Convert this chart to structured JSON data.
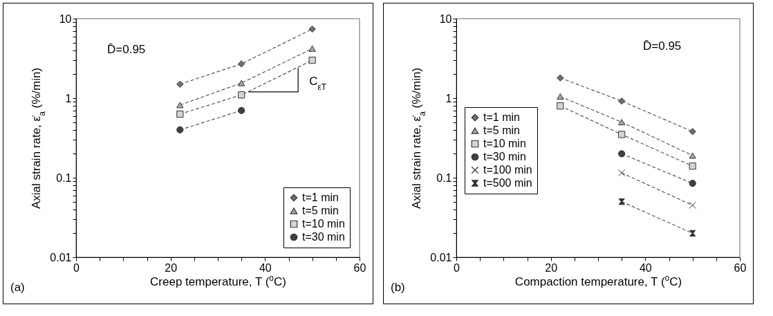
{
  "chart_data": [
    {
      "type": "line",
      "xlabel": "Creep temperature, T ($^{o}$C)",
      "ylabel": "Axial strain rate, ε̇$_{a}$ (%/min)",
      "x": [
        22,
        35,
        50
      ],
      "series": [
        {
          "name": "t=1 min",
          "color": "#707070",
          "marker": "diamond",
          "values": [
            1.5,
            2.7,
            7.4
          ]
        },
        {
          "name": "t=5 min",
          "color": "#a8a8a8",
          "marker": "triangle",
          "values": [
            0.82,
            1.55,
            4.2
          ]
        },
        {
          "name": "t=10 min",
          "color": "#d4d4d4",
          "marker": "square",
          "values": [
            0.63,
            1.1,
            3.0
          ]
        },
        {
          "name": "t=30 min",
          "color": "#404040",
          "marker": "circle",
          "values": [
            0.4,
            0.7,
            null
          ]
        }
      ],
      "log": "y",
      "xlim": [
        0,
        60
      ],
      "ylim": [
        0.01,
        10
      ],
      "xticks": [
        0,
        {
          "value": 5,
          "label": null
        },
        {
          "value": 10,
          "label": null
        },
        {
          "value": 15,
          "label": null
        },
        20,
        {
          "value": 25,
          "label": null
        },
        {
          "value": 30,
          "label": null
        },
        {
          "value": 35,
          "label": null
        },
        40,
        {
          "value": 45,
          "label": null
        },
        {
          "value": 50,
          "label": null
        },
        {
          "value": 55,
          "label": null
        },
        60
      ],
      "yticks": [
        0.01,
        {
          "value": 0.02,
          "label": null
        },
        {
          "value": 0.03,
          "label": null
        },
        {
          "value": 0.04,
          "label": null
        },
        {
          "value": 0.05,
          "label": null
        },
        {
          "value": 0.06,
          "label": null
        },
        {
          "value": 0.07,
          "label": null
        },
        {
          "value": 0.08,
          "label": null
        },
        {
          "value": 0.09,
          "label": null
        },
        0.1,
        {
          "value": 0.2,
          "label": null
        },
        {
          "value": 0.3,
          "label": null
        },
        {
          "value": 0.4,
          "label": null
        },
        {
          "value": 0.5,
          "label": null
        },
        {
          "value": 0.6,
          "label": null
        },
        {
          "value": 0.7,
          "label": null
        },
        {
          "value": 0.8,
          "label": null
        },
        {
          "value": 0.9,
          "label": null
        },
        1,
        {
          "value": 2,
          "label": null
        },
        {
          "value": 3,
          "label": null
        },
        {
          "value": 4,
          "label": null
        },
        {
          "value": 5,
          "label": null
        },
        {
          "value": 6,
          "label": null
        },
        {
          "value": 7,
          "label": null
        },
        {
          "value": 8,
          "label": null
        },
        {
          "value": 9,
          "label": null
        },
        10
      ],
      "grid": false,
      "legend": "bottom right",
      "line_style": "dashed",
      "annotations": [
        "D̄=0.95",
        {
          "text": "C$_{εT}$",
          "x": 47,
          "y": 2.4
        },
        "(a)"
      ]
    },
    {
      "type": "line",
      "xlabel": "Compaction temperature, T ($^{o}$C)",
      "ylabel": "Axial strain rate, ε̇$_{a}$ (%/min)",
      "x": [
        22,
        35,
        50
      ],
      "series": [
        {
          "name": "t=1 min",
          "color": "#707070",
          "marker": "diamond",
          "values": [
            1.8,
            0.92,
            0.38
          ]
        },
        {
          "name": "t=5 min",
          "color": "#a8a8a8",
          "marker": "triangle",
          "values": [
            1.05,
            0.5,
            0.19
          ]
        },
        {
          "name": "t=10 min",
          "color": "#d4d4d4",
          "marker": "square",
          "values": [
            0.8,
            0.35,
            0.14
          ]
        },
        {
          "name": "t=30 min",
          "color": "#404040",
          "marker": "circle",
          "values": [
            null,
            0.2,
            0.085
          ]
        },
        {
          "name": "t=100 min",
          "color": "#333333",
          "marker": "cross",
          "values": [
            null,
            0.115,
            0.045
          ]
        },
        {
          "name": "t=500 min",
          "color": "#333333",
          "marker": "star",
          "values": [
            null,
            0.05,
            0.02
          ]
        }
      ],
      "log": "y",
      "xlim": [
        0,
        60
      ],
      "ylim": [
        0.01,
        10
      ],
      "xticks": [
        0,
        {
          "value": 5,
          "label": null
        },
        {
          "value": 10,
          "label": null
        },
        {
          "value": 15,
          "label": null
        },
        20,
        {
          "value": 25,
          "label": null
        },
        {
          "value": 30,
          "label": null
        },
        {
          "value": 35,
          "label": null
        },
        40,
        {
          "value": 45,
          "label": null
        },
        {
          "value": 50,
          "label": null
        },
        {
          "value": 55,
          "label": null
        },
        60
      ],
      "yticks": [
        0.01,
        {
          "value": 0.02,
          "label": null
        },
        {
          "value": 0.03,
          "label": null
        },
        {
          "value": 0.04,
          "label": null
        },
        {
          "value": 0.05,
          "label": null
        },
        {
          "value": 0.06,
          "label": null
        },
        {
          "value": 0.07,
          "label": null
        },
        {
          "value": 0.08,
          "label": null
        },
        {
          "value": 0.09,
          "label": null
        },
        0.1,
        {
          "value": 0.2,
          "label": null
        },
        {
          "value": 0.3,
          "label": null
        },
        {
          "value": 0.4,
          "label": null
        },
        {
          "value": 0.5,
          "label": null
        },
        {
          "value": 0.6,
          "label": null
        },
        {
          "value": 0.7,
          "label": null
        },
        {
          "value": 0.8,
          "label": null
        },
        {
          "value": 0.9,
          "label": null
        },
        1,
        {
          "value": 2,
          "label": null
        },
        {
          "value": 3,
          "label": null
        },
        {
          "value": 4,
          "label": null
        },
        {
          "value": 5,
          "label": null
        },
        {
          "value": 6,
          "label": null
        },
        {
          "value": 7,
          "label": null
        },
        {
          "value": 8,
          "label": null
        },
        {
          "value": 9,
          "label": null
        },
        10
      ],
      "grid": false,
      "legend": "left",
      "line_style": "dashed",
      "annotations": [
        "D̄=0.95",
        "(b)"
      ]
    }
  ]
}
